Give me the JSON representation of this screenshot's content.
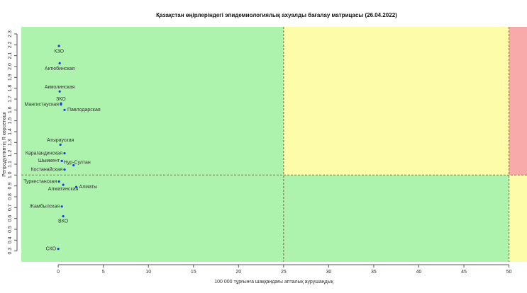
{
  "chart_data": {
    "type": "scatter",
    "title": "Қазақстан өңірлеріндегі эпидемиологиялық ахуалды бағалау матрицасы  (26.04.2022)",
    "x_label": "100 000 тұрғынға шаққандағы апталық аурушаңдық",
    "y_label": "Репродуктивтің R көрсеткіші",
    "xlim": [
      -4.1,
      52
    ],
    "ylim": [
      0.2,
      2.365
    ],
    "xticks": [
      0,
      5,
      10,
      15,
      20,
      25,
      30,
      35,
      40,
      45,
      50
    ],
    "yticks": [
      0.3,
      0.4,
      0.5,
      0.6,
      0.7,
      0.8,
      0.9,
      {
        "value": 1.0,
        "label": "1.0"
      },
      1.1,
      1.2,
      1.3,
      1.4,
      1.5,
      1.6,
      1.7,
      1.8,
      1.9,
      {
        "value": 2.0,
        "label": "2.0"
      },
      2.1,
      2.2,
      2.3
    ],
    "x_thresholds": [
      25,
      50
    ],
    "y_threshold": 1,
    "zone_colors": {
      "green": "#adf3ad",
      "yellow": "#fdfca8",
      "red": "#f8aaaa"
    },
    "threshold_color": "#b0704a",
    "color": "#1f3fcf",
    "labels": [
      "КЗО",
      "Актюбинская",
      "Акмолинская",
      "ЗКО",
      "Мангистауская",
      "Павлодарская",
      "Атырауская",
      "Карагандинская",
      "Шымкент",
      "Нур-Султан",
      "Костанайская",
      "Туркестанская",
      "Алматинская",
      "Алматы",
      "Жамбылская",
      "ВКО",
      "СКО"
    ],
    "x": [
      0.08,
      0.16,
      0.16,
      0.3,
      0.3,
      0.7,
      0.24,
      0.7,
      0.4,
      1.7,
      0.7,
      0.08,
      0.55,
      2.0,
      0.4,
      0.55,
      0.0
    ],
    "y": [
      2.19,
      2.03,
      1.77,
      1.66,
      1.65,
      1.6,
      1.28,
      1.2,
      1.13,
      1.09,
      1.05,
      0.94,
      0.91,
      0.89,
      0.71,
      0.62,
      0.32
    ]
  }
}
